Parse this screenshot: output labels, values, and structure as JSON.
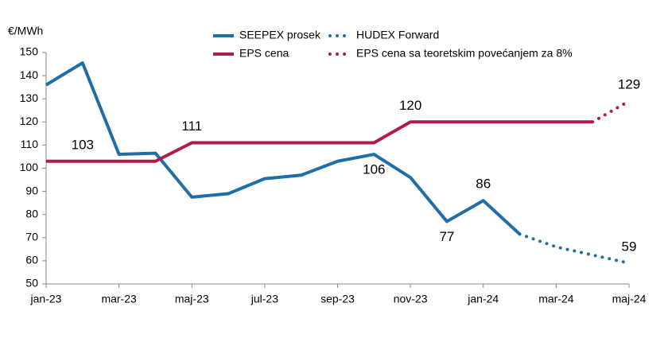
{
  "chart_data": {
    "type": "line",
    "y_label": "€/MWh",
    "categories": [
      "jan-23",
      null,
      "mar-23",
      null,
      "maj-23",
      null,
      "jul-23",
      null,
      "sep-23",
      null,
      "nov-23",
      null,
      "jan-24",
      null,
      "mar-24",
      null,
      "maj-24"
    ],
    "ylim": [
      50,
      150
    ],
    "yticks": [
      50,
      60,
      70,
      80,
      90,
      100,
      110,
      120,
      130,
      140,
      150
    ],
    "grid": false,
    "series": [
      {
        "name": "SEEPEX prosek",
        "color": "#1f6ea6",
        "dash": "solid",
        "values": [
          136,
          145.5,
          106,
          106.5,
          87.5,
          89,
          95.5,
          97,
          103,
          106,
          96,
          77,
          86,
          71.5,
          null,
          null,
          null
        ],
        "data_labels": [
          {
            "index": 9,
            "side": "below"
          },
          {
            "index": 11,
            "side": "below"
          },
          {
            "index": 12,
            "side": "above"
          }
        ]
      },
      {
        "name": "HUDEX Forward",
        "color": "#1f6ea6",
        "dash": "dot",
        "values": [
          null,
          null,
          null,
          null,
          null,
          null,
          null,
          null,
          null,
          null,
          null,
          null,
          null,
          71.5,
          66,
          62.5,
          59
        ],
        "data_labels": [
          {
            "index": 16,
            "side": "above"
          }
        ]
      },
      {
        "name": "EPS cena",
        "color": "#b01a4c",
        "dash": "solid",
        "values": [
          103,
          103,
          103,
          103,
          111,
          111,
          111,
          111,
          111,
          111,
          120,
          120,
          120,
          120,
          120,
          120,
          null
        ],
        "data_labels": [
          {
            "index": 1,
            "side": "above"
          },
          {
            "index": 4,
            "side": "above"
          },
          {
            "index": 10,
            "side": "above"
          }
        ]
      },
      {
        "name": "EPS cena sa teoretskim povećanjem za 8%",
        "color": "#b01a4c",
        "dash": "dot",
        "values": [
          null,
          null,
          null,
          null,
          null,
          null,
          null,
          null,
          null,
          null,
          null,
          null,
          null,
          null,
          null,
          120,
          129
        ],
        "data_labels": [
          {
            "index": 16,
            "side": "above"
          }
        ]
      }
    ]
  }
}
